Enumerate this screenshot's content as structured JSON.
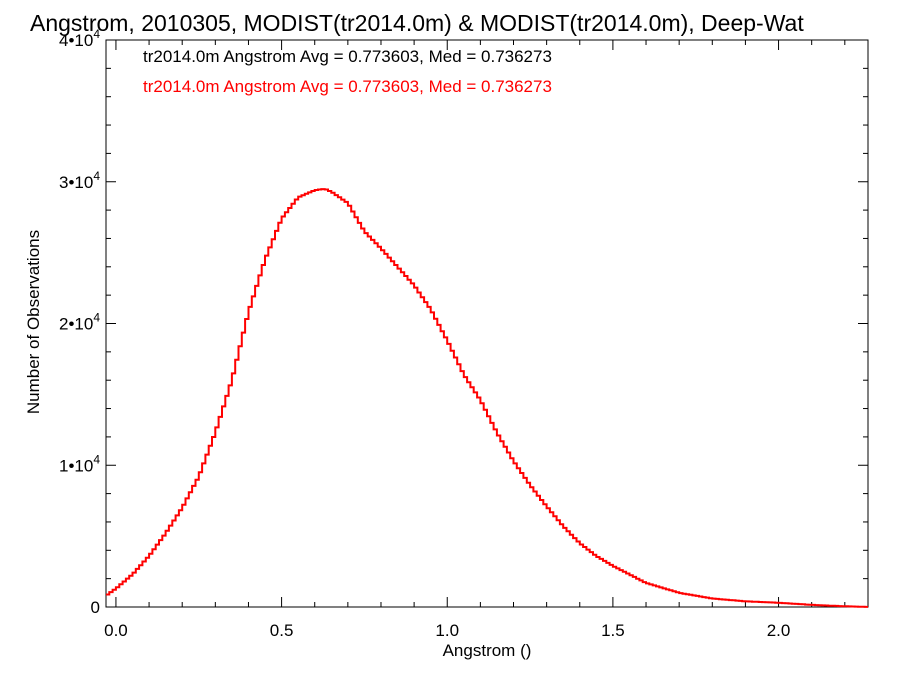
{
  "chart_data": {
    "type": "line",
    "title": "Angstrom, 2010305, MODIST(tr2014.0m) & MODIST(tr2014.0m), Deep-Wat",
    "xlabel": "Angstrom ()",
    "ylabel": "Number of Observations",
    "xlim": [
      -0.03,
      2.27
    ],
    "ylim": [
      0,
      40000
    ],
    "x_ticks": [
      {
        "value": 0.0,
        "label": "0.0"
      },
      {
        "value": 0.5,
        "label": "0.5"
      },
      {
        "value": 1.0,
        "label": "1.0"
      },
      {
        "value": 1.5,
        "label": "1.5"
      },
      {
        "value": 2.0,
        "label": "2.0"
      }
    ],
    "y_ticks": [
      {
        "value": 0,
        "label": "0",
        "exp": ""
      },
      {
        "value": 10000,
        "label": "1•10",
        "exp": "4"
      },
      {
        "value": 20000,
        "label": "2•10",
        "exp": "4"
      },
      {
        "value": 30000,
        "label": "3•10",
        "exp": "4"
      },
      {
        "value": 40000,
        "label": "4•10",
        "exp": "4"
      }
    ],
    "annotations": [
      {
        "text": "tr2014.0m Angstrom Avg = 0.773603, Med = 0.736273",
        "color": "#000000"
      },
      {
        "text": "tr2014.0m Angstrom Avg = 0.773603, Med = 0.736273",
        "color": "#ff0000"
      }
    ],
    "series": [
      {
        "color": "#ff0000",
        "step": true,
        "x": [
          -0.03,
          0.0,
          0.05,
          0.1,
          0.15,
          0.2,
          0.25,
          0.3,
          0.35,
          0.4,
          0.45,
          0.5,
          0.55,
          0.6,
          0.63,
          0.65,
          0.7,
          0.75,
          0.8,
          0.85,
          0.9,
          0.95,
          1.0,
          1.05,
          1.1,
          1.15,
          1.2,
          1.25,
          1.3,
          1.35,
          1.4,
          1.45,
          1.5,
          1.55,
          1.6,
          1.7,
          1.8,
          1.9,
          2.0,
          2.1,
          2.2,
          2.27
        ],
        "y": [
          800,
          1300,
          2300,
          3600,
          5200,
          7000,
          9200,
          12300,
          16000,
          20800,
          24500,
          27400,
          28900,
          29400,
          29500,
          29300,
          28500,
          26500,
          25300,
          24000,
          22700,
          21000,
          18800,
          16400,
          14600,
          12300,
          10300,
          8600,
          7100,
          5700,
          4500,
          3600,
          2900,
          2300,
          1700,
          1000,
          600,
          400,
          300,
          150,
          50,
          0
        ]
      }
    ]
  }
}
